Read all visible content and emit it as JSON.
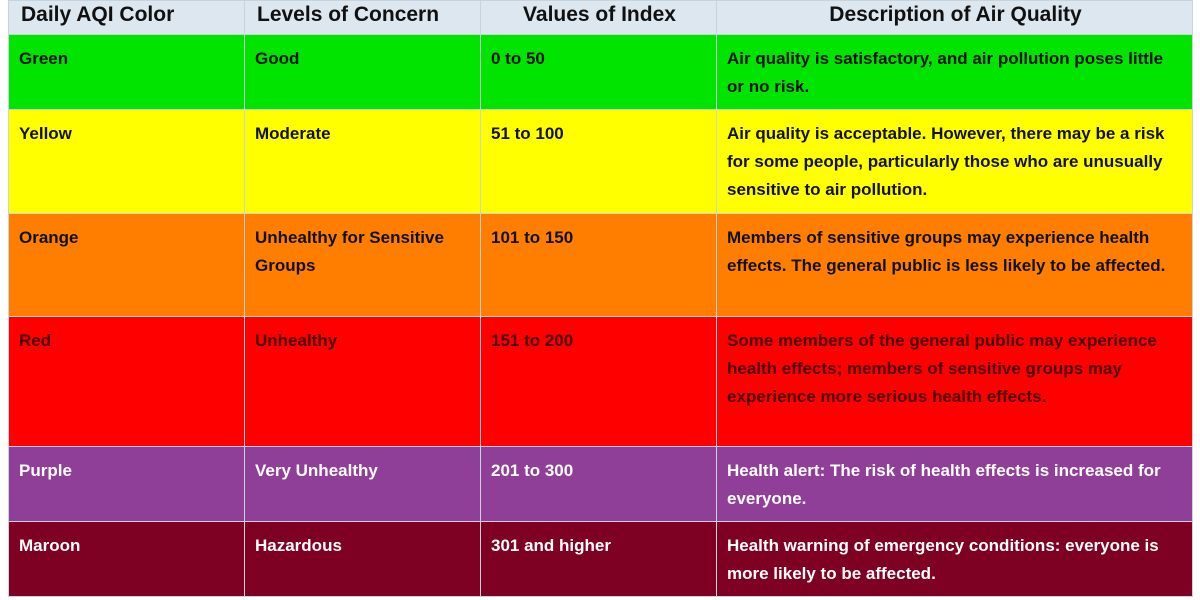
{
  "table": {
    "headers": [
      "Daily AQI Color",
      "Levels of Concern",
      "Values of Index",
      "Description of Air Quality"
    ],
    "rows": [
      {
        "color_name": "Green",
        "level": "Good",
        "values": "0 to 50",
        "description": "Air quality is satisfactory, and air pollution poses little or no risk.",
        "bg": "#00e400",
        "text_color": "#111111"
      },
      {
        "color_name": "Yellow",
        "level": "Moderate",
        "values": "51 to 100",
        "description": "Air quality is acceptable. However, there may be a risk for some people, particularly those who are unusually sensitive to air pollution.",
        "bg": "#ffff00",
        "text_color": "#111111"
      },
      {
        "color_name": "Orange",
        "level": "Unhealthy for Sensitive Groups",
        "values": "101 to 150",
        "description": "Members of sensitive groups may experience health effects. The general public is less likely to be affected.",
        "bg": "#ff7e00",
        "text_color": "#111111"
      },
      {
        "color_name": "Red",
        "level": "Unhealthy",
        "values": "151 to 200",
        "description": "Some members of the general public may experience health effects; members of sensitive groups may experience more serious health effects.",
        "bg": "#ff0000",
        "text_color": "#4a0000"
      },
      {
        "color_name": "Purple",
        "level": "Very Unhealthy",
        "values": "201 to 300",
        "description": "Health alert: The risk of health effects is increased for everyone.",
        "bg": "#8f3f97",
        "text_color": "#ffffff"
      },
      {
        "color_name": "Maroon",
        "level": "Hazardous",
        "values": "301 and higher",
        "description": "Health warning of emergency conditions: everyone is more likely to be affected.",
        "bg": "#7e0023",
        "text_color": "#ffffff"
      }
    ]
  }
}
